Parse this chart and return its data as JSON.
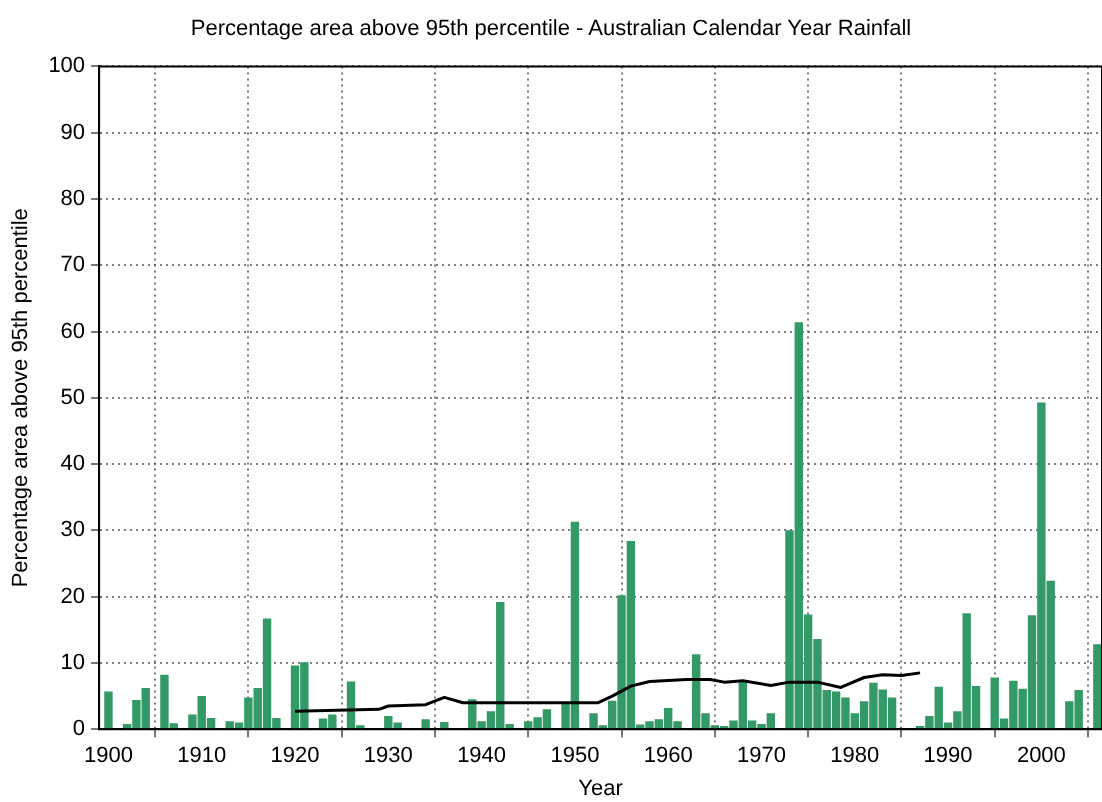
{
  "chart_data": {
    "type": "bar",
    "title": "Percentage area above 95th percentile - Australian Calendar Year Rainfall",
    "xlabel": "Year",
    "ylabel": "Percentage area above 95th percentile",
    "x": [
      1900,
      1902,
      1903,
      1904,
      1906,
      1907,
      1909,
      1910,
      1911,
      1913,
      1914,
      1915,
      1916,
      1917,
      1918,
      1920,
      1921,
      1923,
      1924,
      1926,
      1927,
      1930,
      1931,
      1934,
      1936,
      1939,
      1940,
      1941,
      1942,
      1943,
      1945,
      1946,
      1947,
      1949,
      1950,
      1952,
      1953,
      1954,
      1955,
      1956,
      1957,
      1958,
      1959,
      1960,
      1961,
      1963,
      1964,
      1965,
      1966,
      1967,
      1968,
      1969,
      1970,
      1971,
      1973,
      1974,
      1975,
      1976,
      1977,
      1978,
      1979,
      1980,
      1981,
      1982,
      1983,
      1984,
      1987,
      1988,
      1989,
      1990,
      1991,
      1992,
      1993,
      1995,
      1996,
      1997,
      1998,
      1999,
      2000,
      2001,
      2003,
      2004,
      2006
    ],
    "series": [
      {
        "color": "#339966",
        "values": [
          5.7,
          0.8,
          4.4,
          6.2,
          8.2,
          0.9,
          2.2,
          5.0,
          1.7,
          1.2,
          1.0,
          4.8,
          6.2,
          16.7,
          1.7,
          9.6,
          10.1,
          1.6,
          2.2,
          7.2,
          0.6,
          2.0,
          1.0,
          1.5,
          1.1,
          4.5,
          1.2,
          2.7,
          19.2,
          0.8,
          1.2,
          1.8,
          3.0,
          3.8,
          31.3,
          2.4,
          0.6,
          4.3,
          20.2,
          28.4,
          0.7,
          1.2,
          1.5,
          3.2,
          1.2,
          11.3,
          2.4,
          0.6,
          0.5,
          1.3,
          7.1,
          1.3,
          0.8,
          2.4,
          30.0,
          61.4,
          17.3,
          13.6,
          5.9,
          5.7,
          4.8,
          2.4,
          4.2,
          7.0,
          6.0,
          4.8,
          0.5,
          2.0,
          6.4,
          1.0,
          2.7,
          17.5,
          6.5,
          7.8,
          1.6,
          7.3,
          6.1,
          17.2,
          49.3,
          22.4,
          4.2,
          5.9,
          12.8
        ]
      },
      {
        "type": "line",
        "color": "#000000",
        "marker": "none",
        "x": [
          1920,
          1929,
          1930,
          1934,
          1936,
          1938,
          1943,
          1952.5,
          1954,
          1956,
          1958,
          1962,
          1964.5,
          1966,
          1968,
          1971,
          1973,
          1976,
          1978.5,
          1981,
          1983,
          1985,
          1987
        ],
        "values": [
          2.7,
          3.0,
          3.5,
          3.7,
          4.8,
          4.0,
          4.0,
          4.0,
          5.0,
          6.5,
          7.2,
          7.5,
          7.5,
          7.1,
          7.3,
          6.6,
          7.1,
          7.1,
          6.3,
          7.8,
          8.2,
          8.1,
          8.5
        ]
      }
    ],
    "xlim": [
      1899,
      2006.5
    ],
    "xticks": [
      1900,
      1910,
      1920,
      1930,
      1940,
      1950,
      1960,
      1970,
      1980,
      1990,
      2000
    ],
    "ylim": [
      0,
      100
    ],
    "yticks": [
      0,
      10,
      20,
      30,
      40,
      50,
      60,
      70,
      80,
      90,
      100
    ],
    "grid": true
  }
}
